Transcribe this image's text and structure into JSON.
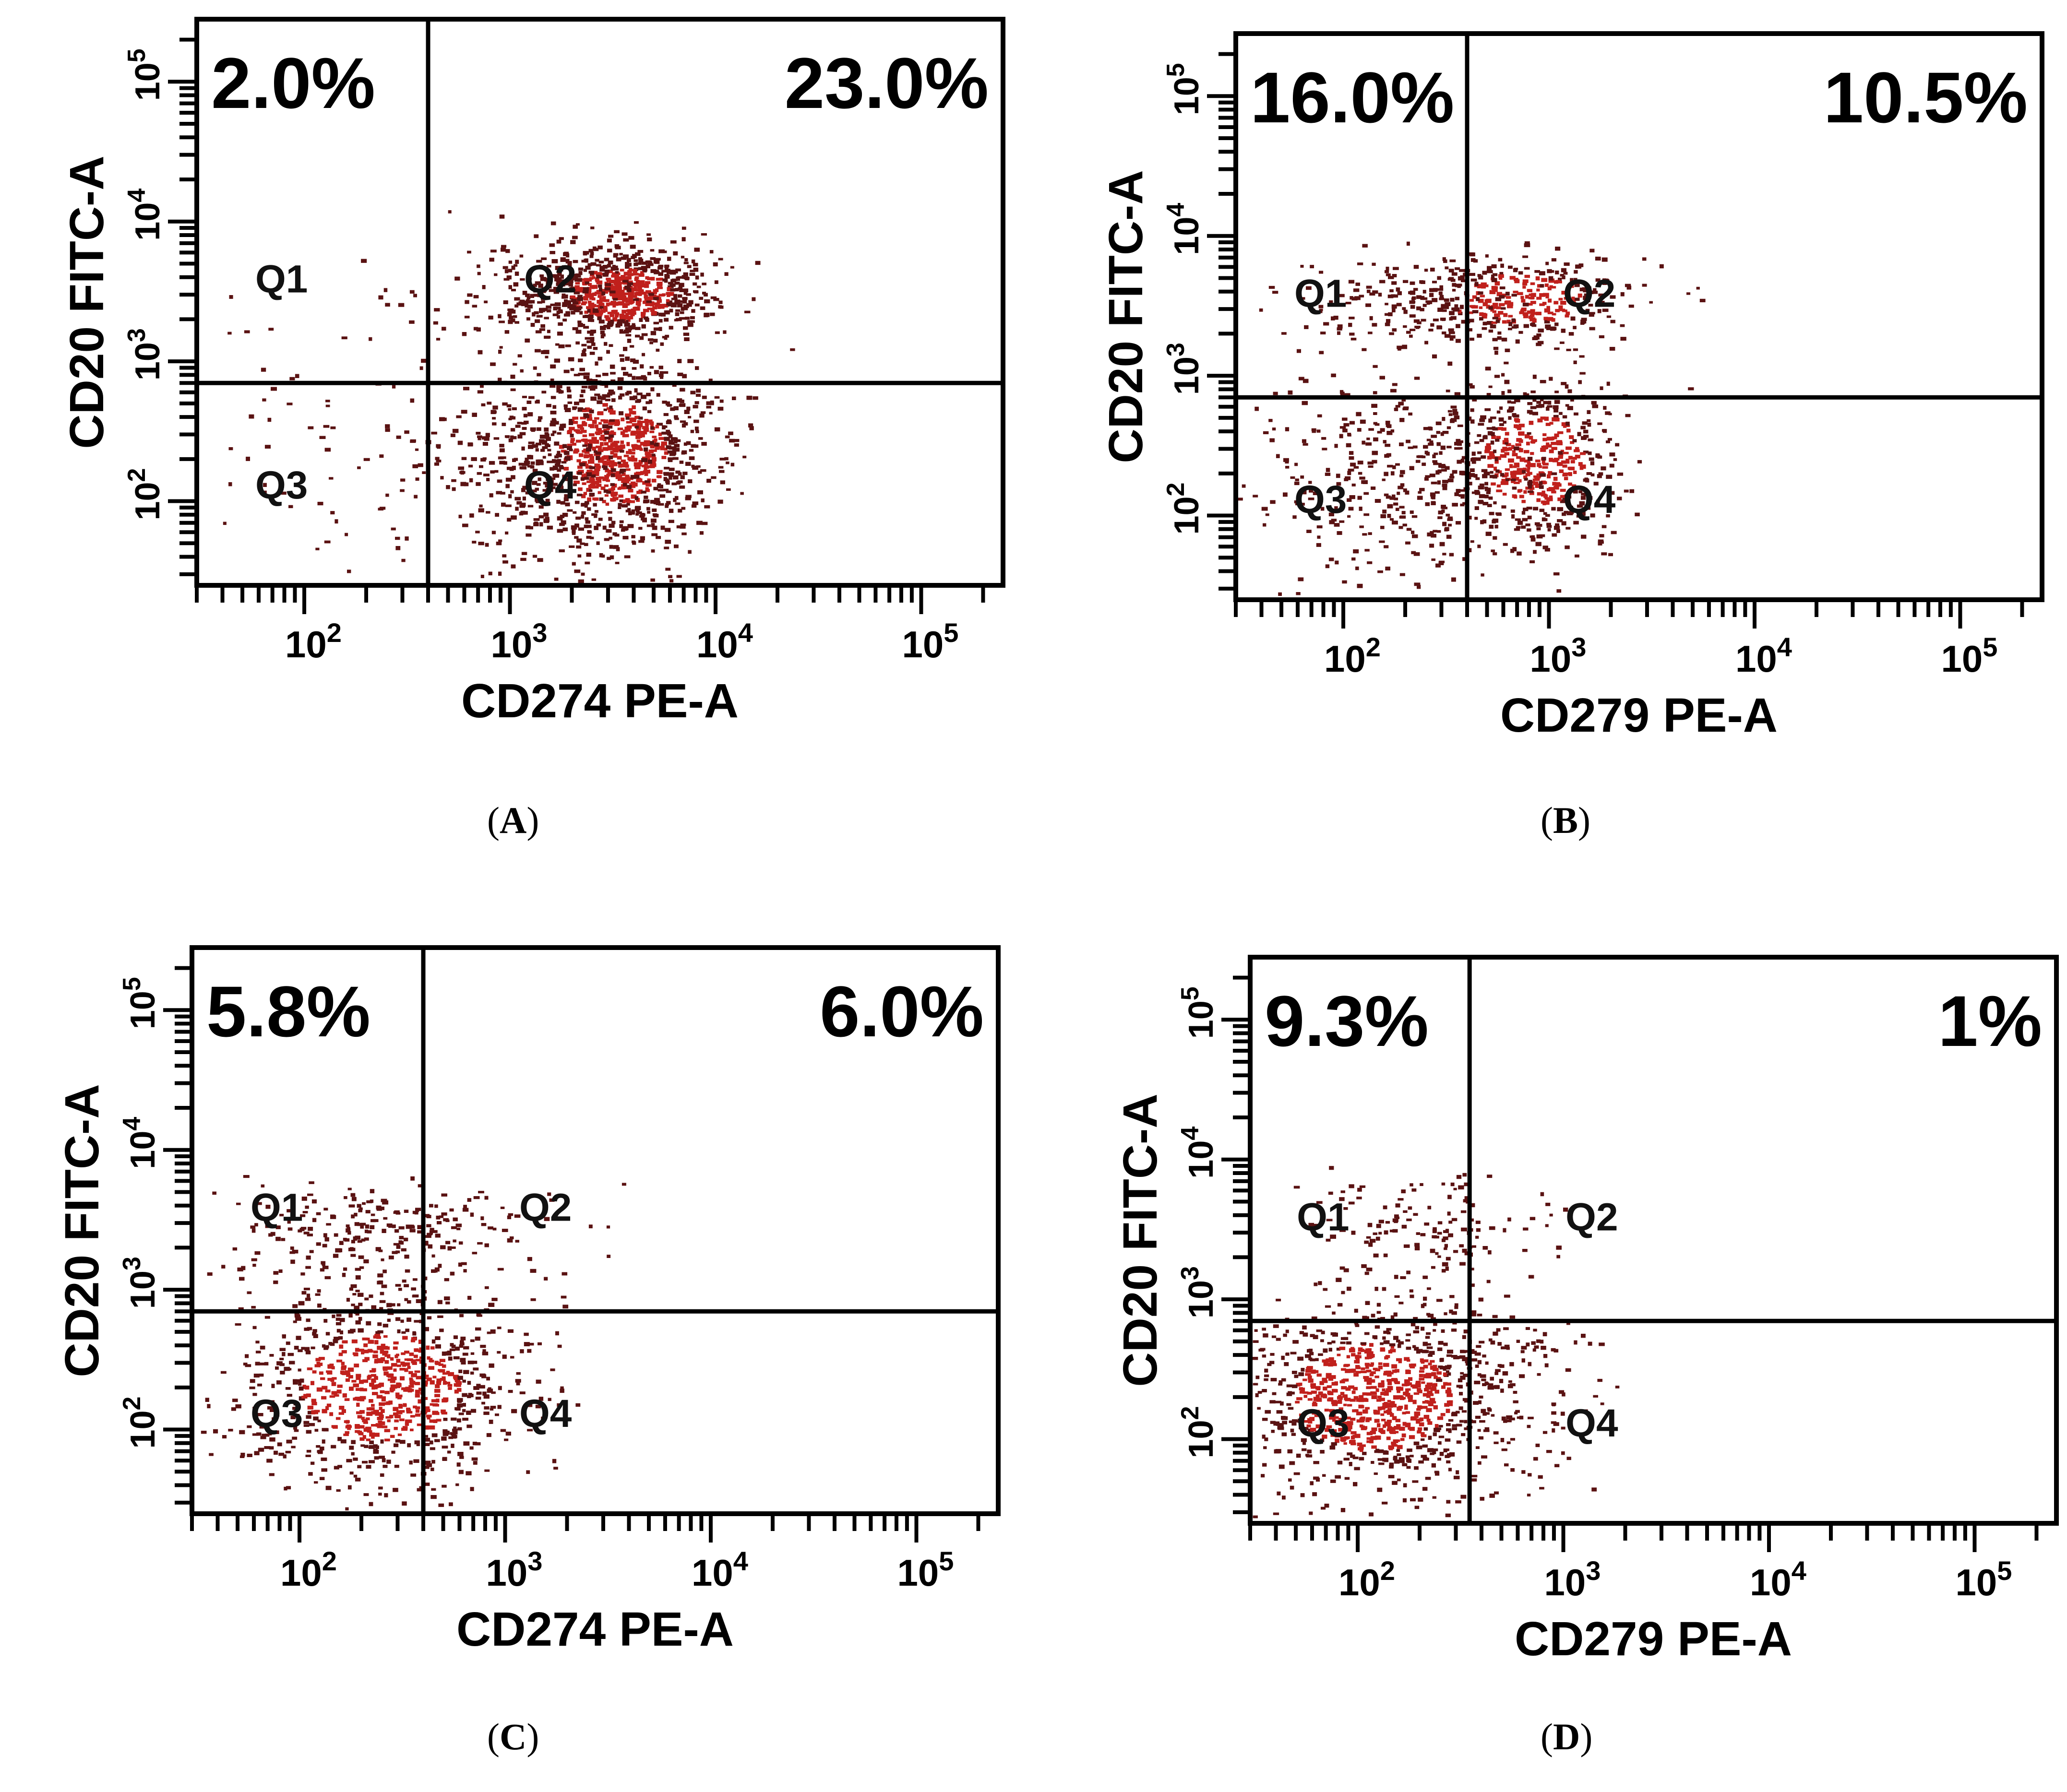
{
  "figure": {
    "panels": [
      {
        "label": "A",
        "caption_prefix": "(",
        "caption_suffix": ")"
      },
      {
        "label": "B",
        "caption_prefix": "(",
        "caption_suffix": ")"
      },
      {
        "label": "C",
        "caption_prefix": "(",
        "caption_suffix": ")"
      },
      {
        "label": "D",
        "caption_prefix": "(",
        "caption_suffix": ")"
      }
    ]
  },
  "colors": {
    "frame": "#000000",
    "dot": "#5a1212",
    "dense": "#c0201c",
    "gate": "#000000"
  },
  "chart_data": [
    {
      "type": "scatter",
      "panel": "A",
      "xlabel": "CD274 PE-A",
      "ylabel": "CD20 FITC-A",
      "xscale": "log",
      "yscale": "log",
      "xlim": [
        30,
        250000
      ],
      "ylim": [
        25,
        280000
      ],
      "xticks": [
        {
          "value": 100,
          "base": "10",
          "exp": "2"
        },
        {
          "value": 1000,
          "base": "10",
          "exp": "3"
        },
        {
          "value": 10000,
          "base": "10",
          "exp": "4"
        },
        {
          "value": 100000,
          "base": "10",
          "exp": "5"
        }
      ],
      "yticks": [
        {
          "value": 100,
          "base": "10",
          "exp": "2"
        },
        {
          "value": 1000,
          "base": "10",
          "exp": "3"
        },
        {
          "value": 10000,
          "base": "10",
          "exp": "4"
        },
        {
          "value": 100000,
          "base": "10",
          "exp": "5"
        }
      ],
      "gate": {
        "x": 400,
        "y": 700
      },
      "quadrants": {
        "q1": "Q1",
        "q2": "Q2",
        "q3": "Q3",
        "q4": "Q4"
      },
      "percent_upper_left": "2.0%",
      "percent_upper_right": "23.0%",
      "populations": [
        {
          "x": 3500,
          "y": 3000,
          "sx": 0.22,
          "sy": 0.17,
          "n": 700,
          "dense": true
        },
        {
          "x": 3200,
          "y": 220,
          "sx": 0.24,
          "sy": 0.34,
          "n": 900,
          "dense": true
        },
        {
          "x": 1800,
          "y": 3500,
          "sx": 0.35,
          "sy": 0.22,
          "n": 200
        },
        {
          "x": 1500,
          "y": 200,
          "sx": 0.4,
          "sy": 0.4,
          "n": 350
        },
        {
          "x": 150,
          "y": 200,
          "sx": 0.4,
          "sy": 0.5,
          "n": 60
        }
      ]
    },
    {
      "type": "scatter",
      "panel": "B",
      "xlabel": "CD279 PE-A",
      "ylabel": "CD20 FITC-A",
      "xscale": "log",
      "yscale": "log",
      "xlim": [
        30,
        250000
      ],
      "ylim": [
        25,
        280000
      ],
      "xticks": [
        {
          "value": 100,
          "base": "10",
          "exp": "2"
        },
        {
          "value": 1000,
          "base": "10",
          "exp": "3"
        },
        {
          "value": 10000,
          "base": "10",
          "exp": "4"
        },
        {
          "value": 100000,
          "base": "10",
          "exp": "5"
        }
      ],
      "yticks": [
        {
          "value": 100,
          "base": "10",
          "exp": "2"
        },
        {
          "value": 1000,
          "base": "10",
          "exp": "3"
        },
        {
          "value": 10000,
          "base": "10",
          "exp": "4"
        },
        {
          "value": 100000,
          "base": "10",
          "exp": "5"
        }
      ],
      "gate": {
        "x": 400,
        "y": 700
      },
      "quadrants": {
        "q1": "Q1",
        "q2": "Q2",
        "q3": "Q3",
        "q4": "Q4"
      },
      "percent_upper_left": "16.0%",
      "percent_upper_right": "10.5%",
      "populations": [
        {
          "x": 850,
          "y": 250,
          "sx": 0.22,
          "sy": 0.3,
          "n": 500,
          "dense": true
        },
        {
          "x": 700,
          "y": 3500,
          "sx": 0.3,
          "sy": 0.16,
          "n": 350,
          "dense": true
        },
        {
          "x": 200,
          "y": 3300,
          "sx": 0.35,
          "sy": 0.18,
          "n": 150
        },
        {
          "x": 200,
          "y": 180,
          "sx": 0.35,
          "sy": 0.4,
          "n": 400
        }
      ]
    },
    {
      "type": "scatter",
      "panel": "C",
      "xlabel": "CD274 PE-A",
      "ylabel": "CD20 FITC-A",
      "xscale": "log",
      "yscale": "log",
      "xlim": [
        30,
        250000
      ],
      "ylim": [
        25,
        280000
      ],
      "xticks": [
        {
          "value": 100,
          "base": "10",
          "exp": "2"
        },
        {
          "value": 1000,
          "base": "10",
          "exp": "3"
        },
        {
          "value": 10000,
          "base": "10",
          "exp": "4"
        },
        {
          "value": 100000,
          "base": "10",
          "exp": "5"
        }
      ],
      "yticks": [
        {
          "value": 100,
          "base": "10",
          "exp": "2"
        },
        {
          "value": 1000,
          "base": "10",
          "exp": "3"
        },
        {
          "value": 10000,
          "base": "10",
          "exp": "4"
        },
        {
          "value": 100000,
          "base": "10",
          "exp": "5"
        }
      ],
      "gate": {
        "x": 400,
        "y": 700
      },
      "quadrants": {
        "q1": "Q1",
        "q2": "Q2",
        "q3": "Q3",
        "q4": "Q4"
      },
      "percent_upper_left": "5.8%",
      "percent_upper_right": "6.0%",
      "populations": [
        {
          "x": 250,
          "y": 200,
          "sx": 0.35,
          "sy": 0.35,
          "n": 900,
          "dense": true
        },
        {
          "x": 250,
          "y": 2500,
          "sx": 0.4,
          "sy": 0.2,
          "n": 250
        }
      ]
    },
    {
      "type": "scatter",
      "panel": "D",
      "xlabel": "CD279 PE-A",
      "ylabel": "CD20 FITC-A",
      "xscale": "log",
      "yscale": "log",
      "xlim": [
        30,
        250000
      ],
      "ylim": [
        25,
        280000
      ],
      "xticks": [
        {
          "value": 100,
          "base": "10",
          "exp": "2"
        },
        {
          "value": 1000,
          "base": "10",
          "exp": "3"
        },
        {
          "value": 10000,
          "base": "10",
          "exp": "4"
        },
        {
          "value": 100000,
          "base": "10",
          "exp": "5"
        }
      ],
      "yticks": [
        {
          "value": 100,
          "base": "10",
          "exp": "2"
        },
        {
          "value": 1000,
          "base": "10",
          "exp": "3"
        },
        {
          "value": 10000,
          "base": "10",
          "exp": "4"
        },
        {
          "value": 100000,
          "base": "10",
          "exp": "5"
        }
      ],
      "gate": {
        "x": 350,
        "y": 700
      },
      "quadrants": {
        "q1": "Q1",
        "q2": "Q2",
        "q3": "Q3",
        "q4": "Q4"
      },
      "percent_upper_left": "9.3%",
      "percent_upper_right": "1%",
      "populations": [
        {
          "x": 120,
          "y": 200,
          "sx": 0.35,
          "sy": 0.35,
          "n": 1000,
          "dense": true
        },
        {
          "x": 200,
          "y": 3500,
          "sx": 0.32,
          "sy": 0.18,
          "n": 130
        },
        {
          "x": 650,
          "y": 200,
          "sx": 0.2,
          "sy": 0.35,
          "n": 90
        }
      ]
    }
  ]
}
